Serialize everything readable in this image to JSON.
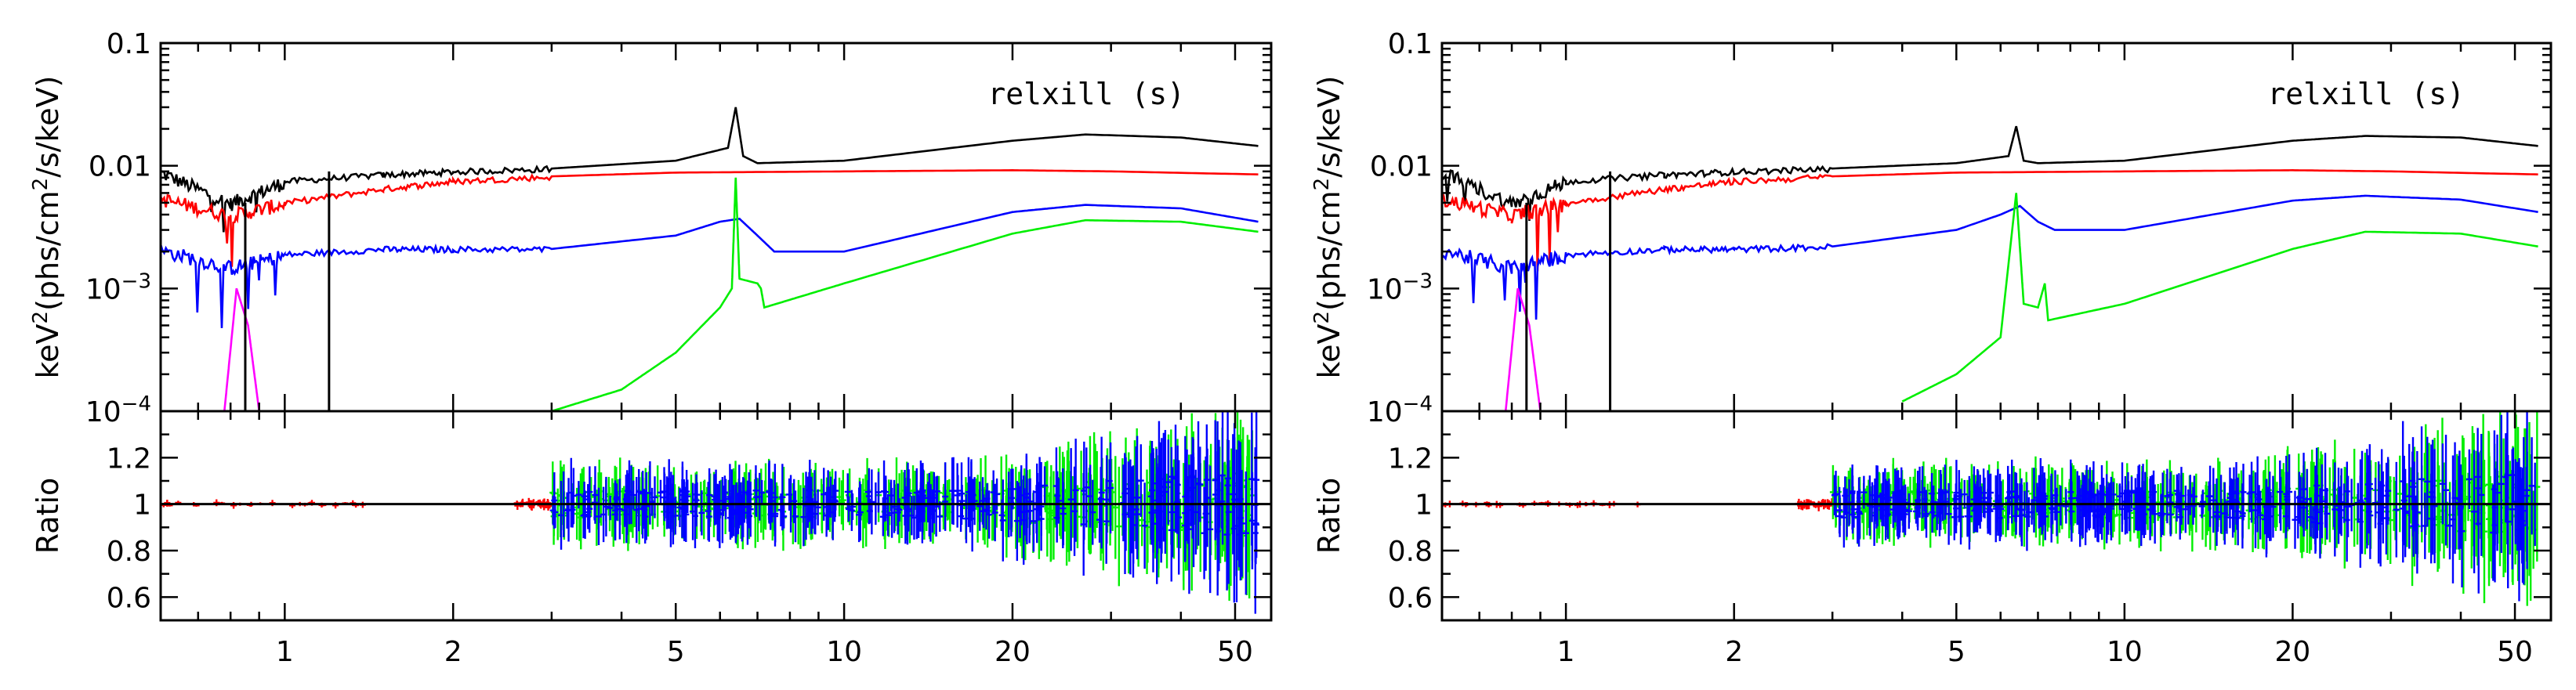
{
  "chart_data": [
    {
      "type": "line",
      "title": "relxill (s)",
      "panel": "left",
      "top": {
        "ylabel_prefix": "keV",
        "ylabel_sup": "2",
        "ylabel_mid": "(phs/cm",
        "ylabel_sup2": "2",
        "ylabel_suffix": "/s/keV)",
        "yscale": "log",
        "ylim": [
          0.0001,
          0.1
        ],
        "yticks": [
          {
            "value": 0.1,
            "label": "0.1"
          },
          {
            "value": 0.01,
            "label": "0.01"
          },
          {
            "value": 0.001,
            "label": "10",
            "sup": "−3"
          },
          {
            "value": 0.0001,
            "label": "10",
            "sup": "−4"
          }
        ],
        "series": [
          {
            "name": "total",
            "color": "#000000",
            "points": [
              [
                0.6,
                0.009
              ],
              [
                0.8,
                0.005
              ],
              [
                1.0,
                0.0075
              ],
              [
                1.5,
                0.0085
              ],
              [
                2.0,
                0.009
              ],
              [
                3.0,
                0.0095
              ],
              [
                5.0,
                0.011
              ],
              [
                6.2,
                0.014
              ],
              [
                6.4,
                0.03
              ],
              [
                6.6,
                0.012
              ],
              [
                7.0,
                0.0105
              ],
              [
                10,
                0.011
              ],
              [
                20,
                0.016
              ],
              [
                27,
                0.018
              ],
              [
                40,
                0.017
              ],
              [
                55,
                0.0145
              ]
            ]
          },
          {
            "name": "red",
            "color": "#ff0000",
            "points": [
              [
                0.6,
                0.0055
              ],
              [
                0.8,
                0.004
              ],
              [
                1.0,
                0.005
              ],
              [
                1.5,
                0.0065
              ],
              [
                2.0,
                0.0075
              ],
              [
                3.0,
                0.0082
              ],
              [
                5.0,
                0.0088
              ],
              [
                10,
                0.009
              ],
              [
                20,
                0.0092
              ],
              [
                30,
                0.009
              ],
              [
                55,
                0.0085
              ]
            ]
          },
          {
            "name": "blue",
            "color": "#0000ff",
            "points": [
              [
                0.6,
                0.0021
              ],
              [
                0.8,
                0.0015
              ],
              [
                1.0,
                0.0019
              ],
              [
                1.5,
                0.0021
              ],
              [
                2.0,
                0.0021
              ],
              [
                3.0,
                0.0021
              ],
              [
                5.0,
                0.0027
              ],
              [
                6.0,
                0.0035
              ],
              [
                6.5,
                0.0037
              ],
              [
                7.0,
                0.0027
              ],
              [
                7.5,
                0.002
              ],
              [
                10,
                0.002
              ],
              [
                20,
                0.0042
              ],
              [
                27,
                0.0048
              ],
              [
                40,
                0.0045
              ],
              [
                55,
                0.0035
              ]
            ]
          },
          {
            "name": "green",
            "color": "#00ee00",
            "points": [
              [
                3.0,
                0.0001
              ],
              [
                4.0,
                0.00015
              ],
              [
                5.0,
                0.0003
              ],
              [
                6.0,
                0.0007
              ],
              [
                6.3,
                0.001
              ],
              [
                6.4,
                0.008
              ],
              [
                6.5,
                0.0012
              ],
              [
                7.0,
                0.0011
              ],
              [
                7.1,
                0.001
              ],
              [
                7.2,
                0.0007
              ],
              [
                10,
                0.0011
              ],
              [
                20,
                0.0028
              ],
              [
                27,
                0.0036
              ],
              [
                40,
                0.0035
              ],
              [
                55,
                0.0029
              ]
            ]
          },
          {
            "name": "magenta",
            "color": "#ff00ff",
            "points": [
              [
                0.78,
                0.0001
              ],
              [
                0.82,
                0.001
              ],
              [
                0.86,
                0.0005
              ],
              [
                0.9,
                0.0001
              ]
            ]
          }
        ]
      },
      "bottom": {
        "ylabel": "Ratio",
        "ylim": [
          0.5,
          1.4
        ],
        "yticks": [
          {
            "value": 0.6,
            "label": "0.6"
          },
          {
            "value": 0.8,
            "label": "0.8"
          },
          {
            "value": 1.0,
            "label": "1"
          },
          {
            "value": 1.2,
            "label": "1.2"
          }
        ],
        "reference": 1.0,
        "series": [
          {
            "name": "red ratio",
            "color": "#ff0000",
            "x_range": [
              0.6,
              1.4
            ],
            "scatter": 0.02
          },
          {
            "name": "red ratio 2",
            "color": "#ff0000",
            "x_range": [
              2.6,
              3.0
            ],
            "scatter": 0.03
          },
          {
            "name": "green ratio",
            "color": "#00ee00",
            "x_range": [
              3.0,
              55
            ],
            "scatter": 0.2
          },
          {
            "name": "blue ratio",
            "color": "#0000ff",
            "x_range": [
              3.0,
              55
            ],
            "scatter": 0.2
          }
        ]
      },
      "xscale": "log",
      "xlim": [
        0.6,
        58
      ],
      "xticks": [
        {
          "value": 1,
          "label": "1"
        },
        {
          "value": 2,
          "label": "2"
        },
        {
          "value": 5,
          "label": "5"
        },
        {
          "value": 10,
          "label": "10"
        },
        {
          "value": 20,
          "label": "20"
        },
        {
          "value": 50,
          "label": "50"
        }
      ]
    },
    {
      "type": "line",
      "title": "relxill (s)",
      "panel": "right",
      "top": {
        "ylabel_prefix": "keV",
        "ylabel_sup": "2",
        "ylabel_mid": "(phs/cm",
        "ylabel_sup2": "2",
        "ylabel_suffix": "/s/keV)",
        "yscale": "log",
        "ylim": [
          0.0001,
          0.1
        ],
        "yticks": [
          {
            "value": 0.1,
            "label": "0.1"
          },
          {
            "value": 0.01,
            "label": "0.01"
          },
          {
            "value": 0.001,
            "label": "10",
            "sup": "−3"
          },
          {
            "value": 0.0001,
            "label": "10",
            "sup": "−4"
          }
        ],
        "series": [
          {
            "name": "total",
            "color": "#000000",
            "points": [
              [
                0.6,
                0.009
              ],
              [
                0.8,
                0.005
              ],
              [
                1.0,
                0.0075
              ],
              [
                1.5,
                0.0085
              ],
              [
                2.0,
                0.009
              ],
              [
                3.0,
                0.0095
              ],
              [
                5.0,
                0.0105
              ],
              [
                6.2,
                0.012
              ],
              [
                6.4,
                0.021
              ],
              [
                6.6,
                0.011
              ],
              [
                7.0,
                0.0105
              ],
              [
                10,
                0.011
              ],
              [
                20,
                0.016
              ],
              [
                27,
                0.0175
              ],
              [
                40,
                0.017
              ],
              [
                55,
                0.0145
              ]
            ]
          },
          {
            "name": "red",
            "color": "#ff0000",
            "points": [
              [
                0.6,
                0.0055
              ],
              [
                0.8,
                0.004
              ],
              [
                1.0,
                0.005
              ],
              [
                1.5,
                0.0065
              ],
              [
                2.0,
                0.0075
              ],
              [
                3.0,
                0.0082
              ],
              [
                5.0,
                0.0088
              ],
              [
                10,
                0.009
              ],
              [
                20,
                0.0092
              ],
              [
                30,
                0.009
              ],
              [
                55,
                0.0085
              ]
            ]
          },
          {
            "name": "blue",
            "color": "#0000ff",
            "points": [
              [
                0.6,
                0.0021
              ],
              [
                0.8,
                0.0015
              ],
              [
                1.0,
                0.0019
              ],
              [
                1.5,
                0.0021
              ],
              [
                2.0,
                0.0021
              ],
              [
                3.0,
                0.0022
              ],
              [
                5.0,
                0.003
              ],
              [
                6.0,
                0.004
              ],
              [
                6.5,
                0.0047
              ],
              [
                7.0,
                0.0035
              ],
              [
                7.5,
                0.003
              ],
              [
                10,
                0.003
              ],
              [
                20,
                0.0052
              ],
              [
                27,
                0.0057
              ],
              [
                40,
                0.0053
              ],
              [
                55,
                0.0042
              ]
            ]
          },
          {
            "name": "green",
            "color": "#00ee00",
            "points": [
              [
                4.0,
                0.00012
              ],
              [
                5.0,
                0.0002
              ],
              [
                6.0,
                0.0004
              ],
              [
                6.4,
                0.006
              ],
              [
                6.6,
                0.00075
              ],
              [
                7.0,
                0.0007
              ],
              [
                7.2,
                0.0011
              ],
              [
                7.3,
                0.00055
              ],
              [
                10,
                0.00075
              ],
              [
                20,
                0.0021
              ],
              [
                27,
                0.0029
              ],
              [
                40,
                0.0028
              ],
              [
                55,
                0.0022
              ]
            ]
          },
          {
            "name": "magenta",
            "color": "#ff00ff",
            "points": [
              [
                0.78,
                0.0001
              ],
              [
                0.82,
                0.001
              ],
              [
                0.86,
                0.0005
              ],
              [
                0.9,
                0.0001
              ]
            ]
          }
        ]
      },
      "bottom": {
        "ylabel": "Ratio",
        "ylim": [
          0.5,
          1.4
        ],
        "yticks": [
          {
            "value": 0.6,
            "label": "0.6"
          },
          {
            "value": 0.8,
            "label": "0.8"
          },
          {
            "value": 1.0,
            "label": "1"
          },
          {
            "value": 1.2,
            "label": "1.2"
          }
        ],
        "reference": 1.0,
        "series": [
          {
            "name": "red ratio",
            "color": "#ff0000",
            "x_range": [
              0.6,
              1.4
            ],
            "scatter": 0.02
          },
          {
            "name": "red ratio 2",
            "color": "#ff0000",
            "x_range": [
              2.6,
              3.0
            ],
            "scatter": 0.03
          },
          {
            "name": "green ratio",
            "color": "#00ee00",
            "x_range": [
              3.0,
              55
            ],
            "scatter": 0.2
          },
          {
            "name": "blue ratio",
            "color": "#0000ff",
            "x_range": [
              3.0,
              55
            ],
            "scatter": 0.2
          }
        ]
      },
      "xscale": "log",
      "xlim": [
        0.6,
        58
      ],
      "xticks": [
        {
          "value": 1,
          "label": "1"
        },
        {
          "value": 2,
          "label": "2"
        },
        {
          "value": 5,
          "label": "5"
        },
        {
          "value": 10,
          "label": "10"
        },
        {
          "value": 20,
          "label": "20"
        },
        {
          "value": 50,
          "label": "50"
        }
      ]
    }
  ]
}
